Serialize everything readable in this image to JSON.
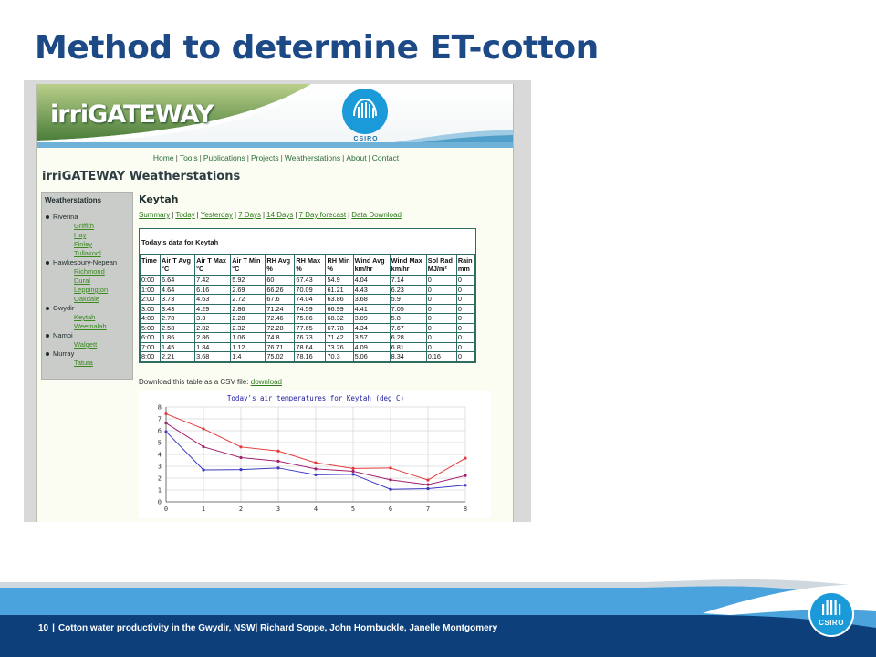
{
  "slide": {
    "title": "Method to determine ET-cotton",
    "footer": {
      "page": "10",
      "text": "Cotton water productivity in the Gwydir, NSW| Richard Soppe, John Hornbuckle, Janelle Montgomery",
      "logo_text": "CSIRO"
    }
  },
  "website": {
    "logo_text": "irriGATEWAY",
    "badge_text": "CSIRO",
    "nav": [
      "Home",
      "Tools",
      "Publications",
      "Projects",
      "Weatherstations",
      "About",
      "Contact"
    ],
    "page_title": "irriGATEWAY Weatherstations",
    "sidebar": {
      "title": "Weatherstations",
      "regions": [
        {
          "name": "Riverina",
          "stations": [
            "Griffith",
            "Hay",
            "Finley",
            "Tullakool"
          ]
        },
        {
          "name": "Hawkesbury-Nepean",
          "stations": [
            "Richmond",
            "Dural",
            "Leppington",
            "Oakdale"
          ]
        },
        {
          "name": "Gwydir",
          "stations": [
            "Keytah",
            "Weemalah"
          ]
        },
        {
          "name": "Namoi",
          "stations": [
            "Walgett"
          ]
        },
        {
          "name": "Murray",
          "stations": [
            "Tatura"
          ]
        }
      ]
    },
    "station": "Keytah",
    "subnav": [
      "Summary",
      "Today",
      "Yesterday",
      "7 Days",
      "14 Days",
      "7 Day forecast",
      "Data Download"
    ],
    "table": {
      "caption": "Today's data for Keytah",
      "headers": [
        [
          "Time",
          ""
        ],
        [
          "Air T Avg",
          "°C"
        ],
        [
          "Air T Max",
          "°C"
        ],
        [
          "Air T Min",
          "°C"
        ],
        [
          "RH Avg",
          "%"
        ],
        [
          "RH Max",
          "%"
        ],
        [
          "RH Min",
          "%"
        ],
        [
          "Wind Avg",
          "km/hr"
        ],
        [
          "Wind Max",
          "km/hr"
        ],
        [
          "Sol Rad",
          "MJ/m²"
        ],
        [
          "Rain",
          "mm"
        ]
      ],
      "rows": [
        [
          "0:00",
          "6.64",
          "7.42",
          "5.92",
          "60",
          "67.43",
          "54.9",
          "4.04",
          "7.14",
          "0",
          "0"
        ],
        [
          "1:00",
          "4.64",
          "6.16",
          "2.69",
          "66.26",
          "70.09",
          "61.21",
          "4.43",
          "6.23",
          "0",
          "0"
        ],
        [
          "2:00",
          "3.73",
          "4.63",
          "2.72",
          "67.6",
          "74.04",
          "63.86",
          "3.68",
          "5.9",
          "0",
          "0"
        ],
        [
          "3:00",
          "3.43",
          "4.29",
          "2.86",
          "71.24",
          "74.59",
          "66.99",
          "4.41",
          "7.05",
          "0",
          "0"
        ],
        [
          "4:00",
          "2.78",
          "3.3",
          "2.28",
          "72.46",
          "75.06",
          "68.32",
          "3.09",
          "5.8",
          "0",
          "0"
        ],
        [
          "5:00",
          "2.58",
          "2.82",
          "2.32",
          "72.28",
          "77.65",
          "67.78",
          "4.34",
          "7.67",
          "0",
          "0"
        ],
        [
          "6:00",
          "1.86",
          "2.86",
          "1.06",
          "74.8",
          "76.73",
          "71.42",
          "3.57",
          "6.28",
          "0",
          "0"
        ],
        [
          "7:00",
          "1.45",
          "1.84",
          "1.12",
          "76.71",
          "78.64",
          "73.26",
          "4.09",
          "6.81",
          "0",
          "0"
        ],
        [
          "8:00",
          "2.21",
          "3.68",
          "1.4",
          "75.02",
          "78.16",
          "70.3",
          "5.06",
          "8.34",
          "0.16",
          "0"
        ]
      ]
    },
    "csv_text": "Download this table as a CSV file:",
    "csv_link": "download"
  },
  "chart_data": {
    "type": "line",
    "title": "Today's air temperatures for Keytah (deg C)",
    "x": [
      0,
      1,
      2,
      3,
      4,
      5,
      6,
      7,
      8
    ],
    "xlim": [
      0,
      8
    ],
    "ylim": [
      0,
      8
    ],
    "x_ticks": [
      "0",
      "1",
      "2",
      "3",
      "4",
      "5",
      "6",
      "7",
      "8"
    ],
    "y_ticks": [
      "0",
      "1",
      "2",
      "3",
      "4",
      "5",
      "6",
      "7",
      "8"
    ],
    "grid": true,
    "series": [
      {
        "values": [
          7.42,
          6.16,
          4.63,
          4.29,
          3.3,
          2.82,
          2.86,
          1.84,
          3.68
        ],
        "color": "#e23b3b"
      },
      {
        "values": [
          6.64,
          4.64,
          3.73,
          3.43,
          2.78,
          2.58,
          1.86,
          1.45,
          2.21
        ],
        "color": "#a0226e"
      },
      {
        "values": [
          5.92,
          2.69,
          2.72,
          2.86,
          2.28,
          2.32,
          1.06,
          1.12,
          1.4
        ],
        "color": "#3a3ac2"
      }
    ]
  }
}
